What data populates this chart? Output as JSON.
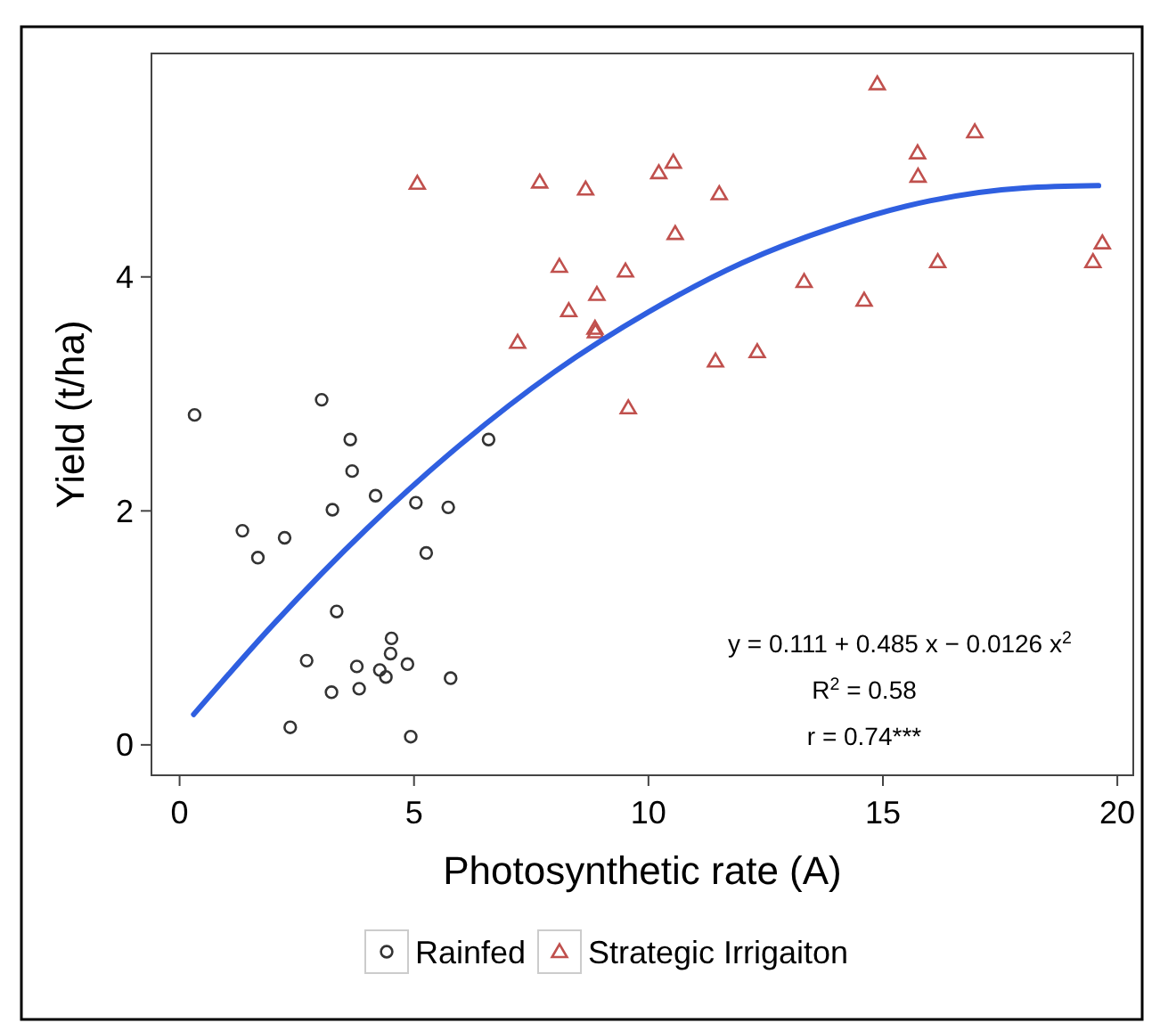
{
  "chart_data": {
    "type": "scatter",
    "xlabel": "Photosynthetic rate (A)",
    "ylabel": "Yield (t/ha)",
    "xlim": [
      -0.6,
      20.34
    ],
    "ylim": [
      -0.26,
      5.91
    ],
    "xticks": [
      0,
      5,
      10,
      15,
      20
    ],
    "yticks": [
      0,
      2,
      4
    ],
    "grid": false,
    "legend": "bottom",
    "annotations": [
      "y = 0.111 + 0.485 x − 0.0126 x$^{2}$",
      "R$^{2}$ = 0.58",
      "r = 0.74***"
    ],
    "series": [
      {
        "name": "Rainfed",
        "color": "#333333",
        "marker": "circle",
        "x": [
          0.32,
          3.03,
          3.64,
          3.68,
          4.18,
          3.26,
          5.04,
          5.73,
          6.59,
          1.34,
          2.24,
          1.67,
          5.26,
          3.35,
          4.52,
          4.5,
          2.71,
          3.78,
          4.27,
          4.4,
          4.86,
          5.78,
          3.24,
          3.83,
          2.36,
          4.93
        ],
        "values": [
          2.82,
          2.95,
          2.61,
          2.34,
          2.13,
          2.01,
          2.07,
          2.03,
          2.61,
          1.83,
          1.77,
          1.6,
          1.64,
          1.14,
          0.91,
          0.78,
          0.72,
          0.67,
          0.64,
          0.58,
          0.69,
          0.57,
          0.45,
          0.48,
          0.15,
          0.07
        ]
      },
      {
        "name": "Strategic Irrigaiton",
        "color": "#c0504d",
        "marker": "triangle",
        "x": [
          5.07,
          7.68,
          8.66,
          10.22,
          10.53,
          11.51,
          10.57,
          8.1,
          9.51,
          8.9,
          8.3,
          8.86,
          8.87,
          7.21,
          11.43,
          9.57,
          14.88,
          16.96,
          15.74,
          15.75,
          19.68,
          19.48,
          16.17,
          13.32,
          14.6,
          12.32
        ],
        "values": [
          4.8,
          4.81,
          4.75,
          4.89,
          4.98,
          4.71,
          4.37,
          4.09,
          4.05,
          3.85,
          3.71,
          3.56,
          3.53,
          3.44,
          3.28,
          2.88,
          5.65,
          5.24,
          5.06,
          4.86,
          4.29,
          4.13,
          4.13,
          3.96,
          3.8,
          3.36
        ]
      },
      {
        "type": "line",
        "color": "#2f5fe0",
        "marker": "none",
        "x": [
          0.3,
          2,
          4,
          6,
          8,
          10,
          12,
          14,
          16,
          18,
          19.6
        ],
        "values": [
          0.26,
          1.03,
          1.85,
          2.57,
          3.19,
          3.7,
          4.12,
          4.43,
          4.65,
          4.76,
          4.78
        ]
      }
    ]
  }
}
